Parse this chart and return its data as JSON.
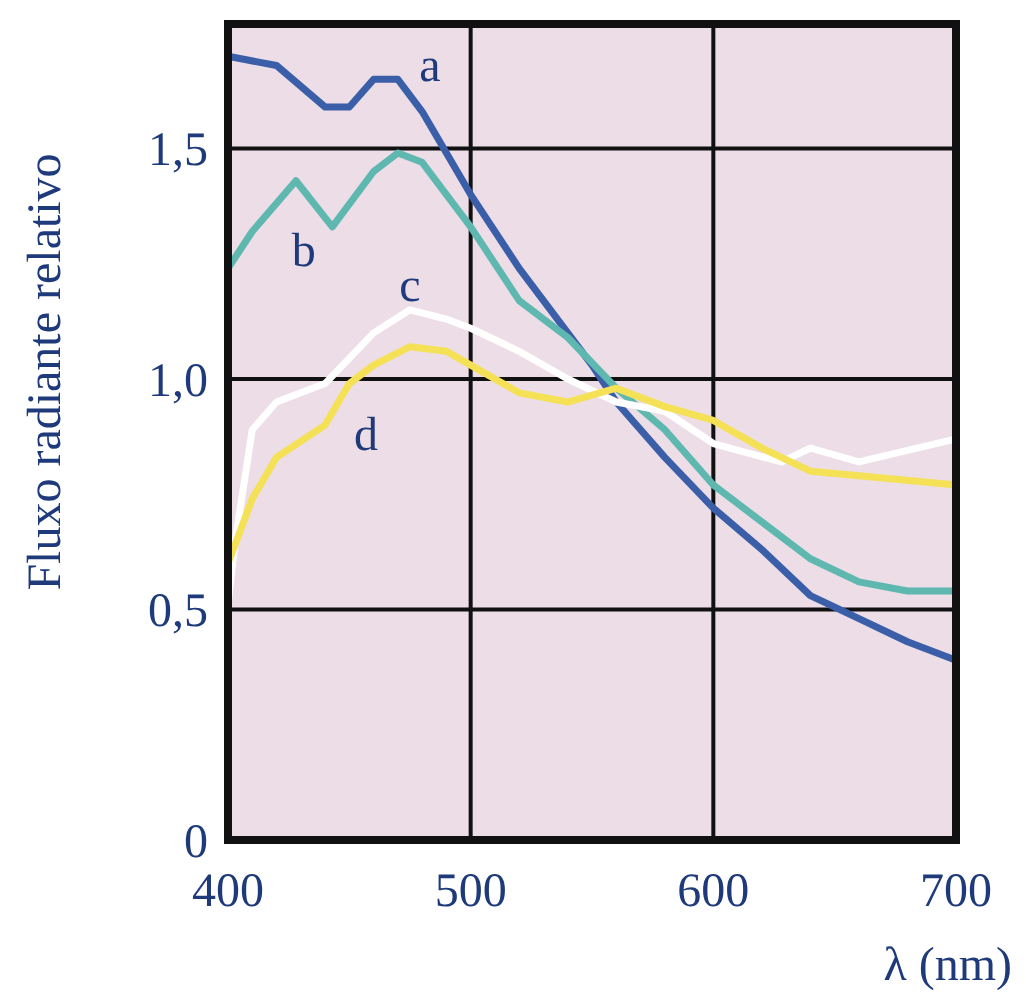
{
  "chart_data": {
    "type": "line",
    "xlabel": "λ (nm)",
    "ylabel": "Fluxo radiante relativo",
    "xlim": [
      400,
      700
    ],
    "xticks": [
      400,
      500,
      600,
      700
    ],
    "ylim": [
      0,
      1.77
    ],
    "yticks": [
      0,
      {
        "value": 0.5,
        "label": "0,5"
      },
      {
        "value": 1,
        "label": "1,0"
      },
      {
        "value": 1.5,
        "label": "1,5"
      }
    ],
    "grid": true,
    "line_style": "solid",
    "marker": "none",
    "series": [
      {
        "name": "a",
        "color": "#3a5ea8",
        "x": [
          400,
          420,
          440,
          450,
          460,
          470,
          480,
          500,
          520,
          540,
          550,
          560,
          580,
          600,
          620,
          640,
          660,
          680,
          700
        ],
        "values": [
          1.7,
          1.68,
          1.59,
          1.59,
          1.65,
          1.65,
          1.58,
          1.4,
          1.24,
          1.1,
          1.03,
          0.95,
          0.83,
          0.72,
          0.63,
          0.53,
          0.48,
          0.43,
          0.39
        ]
      },
      {
        "name": "b",
        "color": "#5fb8b0",
        "x": [
          400,
          410,
          428,
          443,
          460,
          470,
          480,
          500,
          520,
          540,
          560,
          580,
          600,
          620,
          640,
          660,
          680,
          700
        ],
        "values": [
          1.24,
          1.32,
          1.43,
          1.33,
          1.45,
          1.49,
          1.47,
          1.33,
          1.17,
          1.09,
          0.98,
          0.89,
          0.77,
          0.69,
          0.61,
          0.56,
          0.54,
          0.54
        ]
      },
      {
        "name": "c",
        "color": "#ffffff",
        "x": [
          400,
          403,
          410,
          420,
          440,
          460,
          475,
          490,
          500,
          520,
          540,
          560,
          580,
          600,
          628,
          640,
          660,
          700
        ],
        "values": [
          0.51,
          0.65,
          0.89,
          0.95,
          0.99,
          1.1,
          1.15,
          1.13,
          1.11,
          1.06,
          1.0,
          0.95,
          0.93,
          0.86,
          0.82,
          0.85,
          0.82,
          0.87
        ]
      },
      {
        "name": "d",
        "color": "#f5e155",
        "x": [
          400,
          410,
          420,
          440,
          450,
          460,
          475,
          490,
          500,
          520,
          540,
          560,
          580,
          600,
          620,
          640,
          660,
          700
        ],
        "values": [
          0.6,
          0.74,
          0.83,
          0.9,
          0.99,
          1.03,
          1.07,
          1.06,
          1.03,
          0.97,
          0.95,
          0.98,
          0.94,
          0.91,
          0.85,
          0.8,
          0.79,
          0.77
        ]
      }
    ]
  }
}
